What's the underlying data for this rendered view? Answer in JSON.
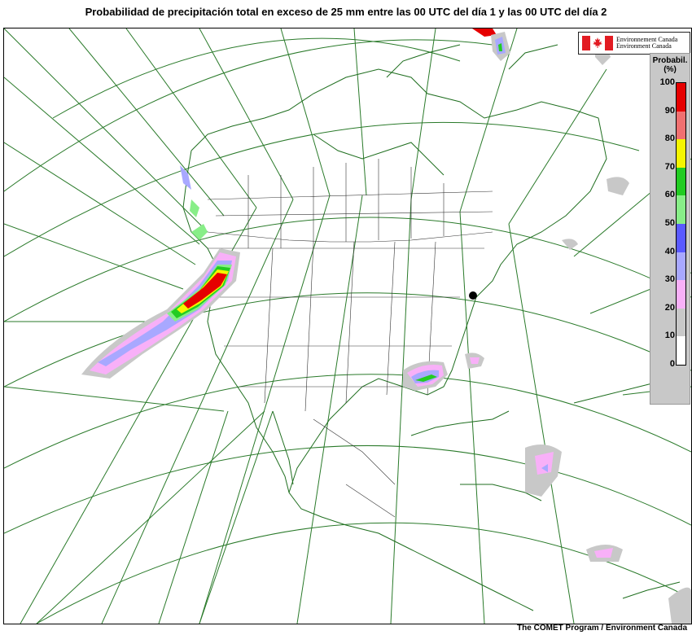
{
  "title": "Probabilidad de precipitación total en exceso de 25 mm entre las 00 UTC del día 1 y las 00 UTC del día 2",
  "logo": {
    "line1": "Environnement Canada",
    "line2": "Environment Canada"
  },
  "legend": {
    "title_line1": "Probabil.",
    "title_line2": "(%)",
    "ticks": [
      "100",
      "90",
      "80",
      "70",
      "60",
      "50",
      "40",
      "30",
      "20",
      "10",
      "0"
    ],
    "colors": [
      "#e60000",
      "#f07070",
      "#f5f500",
      "#22cc22",
      "#88ee88",
      "#5a5aff",
      "#a8a8ff",
      "#f8b0f8",
      "#c8c8c8",
      "#ffffff"
    ]
  },
  "credit": "The COMET Program / Environment Canada"
}
